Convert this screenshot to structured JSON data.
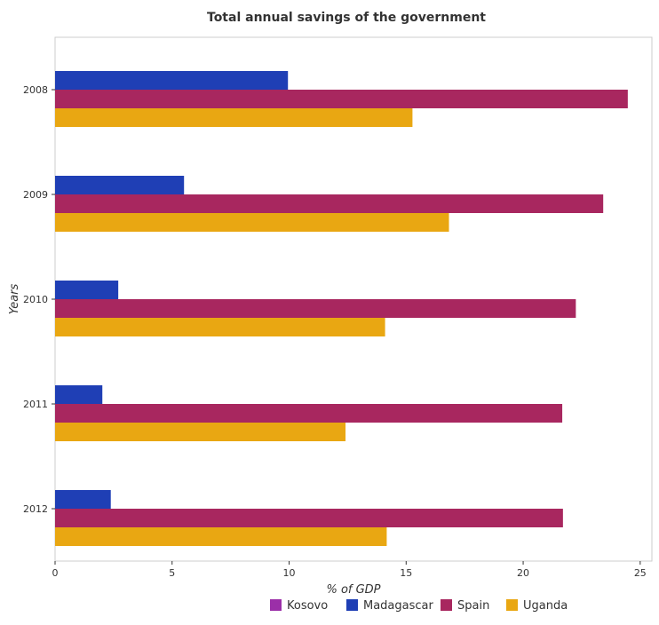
{
  "chart_data": {
    "type": "bar",
    "orientation": "horizontal",
    "title": "Total annual savings of the government",
    "xlabel": "% of GDP",
    "ylabel": "Years",
    "categories": [
      "2008",
      "2009",
      "2010",
      "2011",
      "2012"
    ],
    "xlim": [
      0,
      25.5
    ],
    "xticks": [
      0,
      5,
      10,
      15,
      20,
      25
    ],
    "series": [
      {
        "name": "Kosovo",
        "color": "#9b2fa8",
        "values": [
          0,
          0,
          0,
          0,
          0
        ]
      },
      {
        "name": "Madagascar",
        "color": "#1f3fb5",
        "values": [
          9.95,
          5.51,
          2.7,
          2.02,
          2.38
        ]
      },
      {
        "name": "Spain",
        "color": "#a8275f",
        "values": [
          24.47,
          23.42,
          22.25,
          21.67,
          21.7
        ]
      },
      {
        "name": "Uganda",
        "color": "#e9a712",
        "values": [
          15.27,
          16.83,
          14.1,
          12.41,
          14.17
        ]
      }
    ],
    "legend_position": "bottom-right",
    "grid": false
  }
}
